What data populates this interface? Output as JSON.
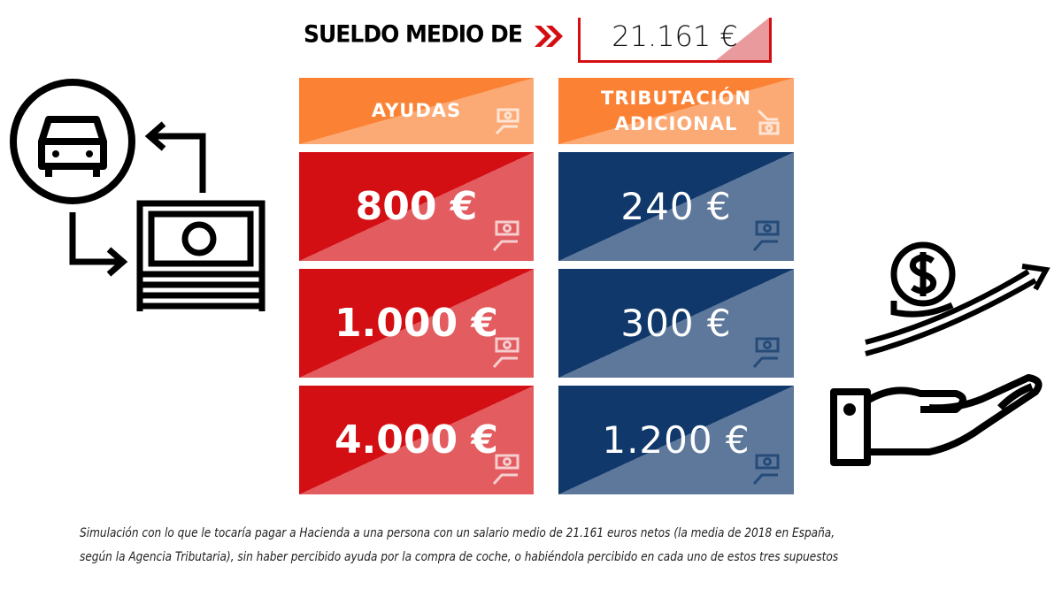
{
  "header": {
    "label": "SUELDO MEDIO DE",
    "salary": "21.161 €"
  },
  "table": {
    "columns": [
      "AYUDAS",
      "TRIBUTACIÓN ADICIONAL"
    ],
    "column_lines": [
      [
        "AYUDAS"
      ],
      [
        "TRIBUTACIÓN",
        "ADICIONAL"
      ]
    ],
    "rows": [
      {
        "ayuda": "800 €",
        "tributacion": "240 €"
      },
      {
        "ayuda": "1.000 €",
        "tributacion": "300 €"
      },
      {
        "ayuda": "4.000 €",
        "tributacion": "1.200 €"
      }
    ]
  },
  "caption": {
    "line1": "Simulación con lo que le tocaría pagar a Hacienda a una persona con un salario medio de 21.161 euros netos (la media de 2018 en España,",
    "line2": "según la Agencia Tributaria), sin haber percibido ayuda por la compra de coche, o habiéndola percibido en cada uno de estos tres supuestos"
  },
  "colors": {
    "orange": "#fb8234",
    "red": "#d40f14",
    "navy": "#10386b",
    "pink": "#e99a9c"
  },
  "icons": [
    "car-in-circle-icon",
    "cash-stack-icon",
    "cycle-arrows-icon",
    "chevron-double-right-icon",
    "coin-dollar-icon",
    "rising-arrow-icon",
    "open-hand-icon",
    "hand-cash-icon"
  ]
}
